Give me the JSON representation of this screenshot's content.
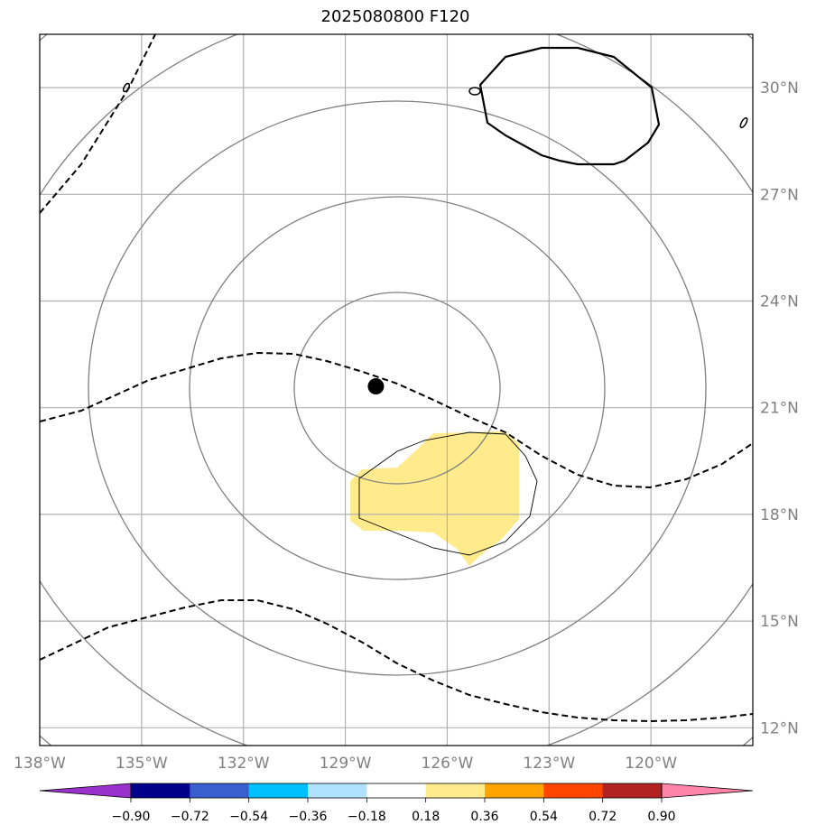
{
  "title": "2025080800 F120",
  "map": {
    "lon_range": [
      -138,
      -117
    ],
    "lat_range": [
      11.5,
      31.5
    ],
    "lon_ticks": [
      {
        "value": -138,
        "label": "138°W"
      },
      {
        "value": -135,
        "label": "135°W"
      },
      {
        "value": -132,
        "label": "132°W"
      },
      {
        "value": -129,
        "label": "129°W"
      },
      {
        "value": -126,
        "label": "126°W"
      },
      {
        "value": -123,
        "label": "123°W"
      },
      {
        "value": -120,
        "label": "120°W"
      }
    ],
    "lat_ticks": [
      {
        "value": 30,
        "label": "30°N"
      },
      {
        "value": 27,
        "label": "27°N"
      },
      {
        "value": 24,
        "label": "24°N"
      },
      {
        "value": 21,
        "label": "21°N"
      },
      {
        "value": 18,
        "label": "18°N"
      },
      {
        "value": 15,
        "label": "15°N"
      },
      {
        "value": 12,
        "label": "12°N"
      }
    ],
    "gridline_color": "#b0b0b0",
    "contour_color": "#808080",
    "center_marker": {
      "lon": -128.1,
      "lat": 21.6,
      "color": "#000000"
    },
    "shaded_value_color": "#ffeb8c"
  },
  "colorbar": {
    "labels": [
      "−0.90",
      "−0.72",
      "−0.54",
      "−0.36",
      "−0.18",
      "0.18",
      "0.36",
      "0.54",
      "0.72",
      "0.90"
    ],
    "colors": [
      "#9932cc",
      "#00008b",
      "#3a5fcd",
      "#00bfff",
      "#b0e2ff",
      "#ffffff",
      "#ffeb8c",
      "#ffa500",
      "#ff4500",
      "#b22222",
      "#ff83aa"
    ]
  }
}
